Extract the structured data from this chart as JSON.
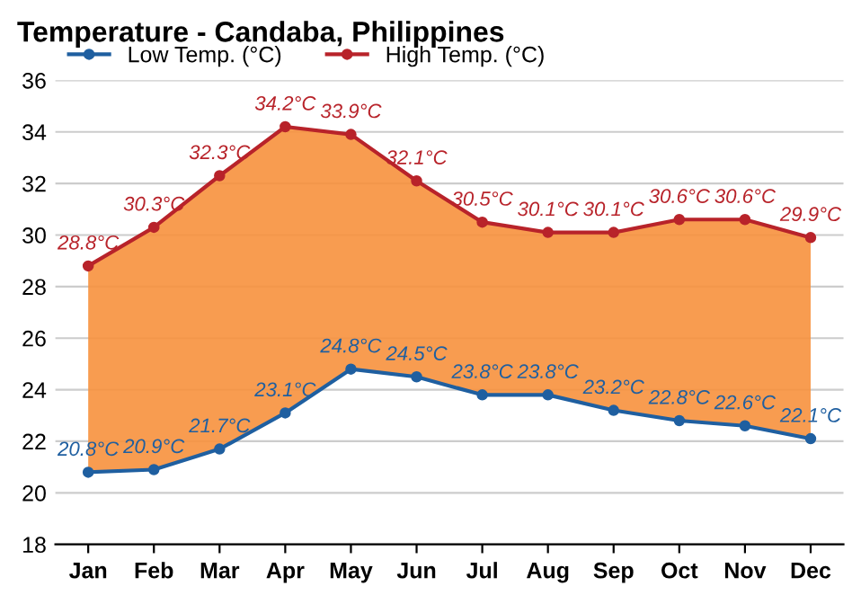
{
  "chart_data": {
    "type": "line",
    "title": "Temperature - Candaba, Philippines",
    "categories": [
      "Jan",
      "Feb",
      "Mar",
      "Apr",
      "May",
      "Jun",
      "Jul",
      "Aug",
      "Sep",
      "Oct",
      "Nov",
      "Dec"
    ],
    "series": [
      {
        "name": "Low Temp. (°C)",
        "color": "#1f5fa0",
        "values": [
          20.8,
          20.9,
          21.7,
          23.1,
          24.8,
          24.5,
          23.8,
          23.8,
          23.2,
          22.8,
          22.6,
          22.1
        ],
        "value_labels": [
          "20.8°C",
          "20.9°C",
          "21.7°C",
          "23.1°C",
          "24.8°C",
          "24.5°C",
          "23.8°C",
          "23.8°C",
          "23.2°C",
          "22.8°C",
          "22.6°C",
          "22.1°C"
        ]
      },
      {
        "name": "High Temp. (°C)",
        "type": "area",
        "color": "#b8232a",
        "values": [
          28.8,
          30.3,
          32.3,
          34.2,
          33.9,
          32.1,
          30.5,
          30.1,
          30.1,
          30.6,
          30.6,
          29.9
        ],
        "value_labels": [
          "28.8°C",
          "30.3°C",
          "32.3°C",
          "34.2°C",
          "33.9°C",
          "32.1°C",
          "30.5°C",
          "30.1°C",
          "30.1°C",
          "30.6°C",
          "30.6°C",
          "29.9°C"
        ]
      }
    ],
    "ylim": [
      18,
      36
    ],
    "yticks": [
      18,
      20,
      22,
      24,
      26,
      28,
      30,
      32,
      34,
      36
    ],
    "grid": "y",
    "legend": "top",
    "marker": "circle",
    "line_style": "solid"
  }
}
